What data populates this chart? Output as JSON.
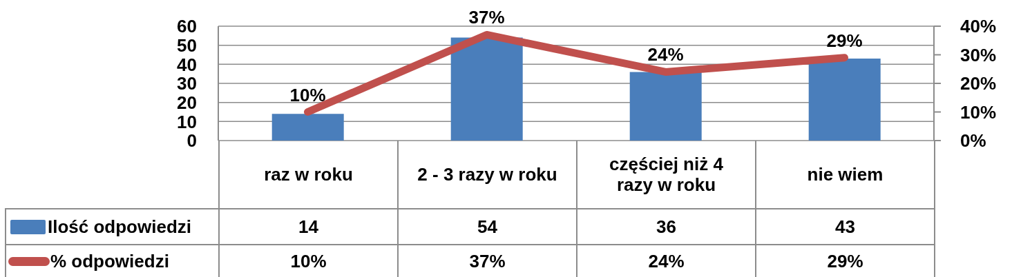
{
  "chart_data": {
    "type": "bar",
    "categories": [
      "raz w roku",
      "2 - 3 razy w roku",
      "częściej niż 4 razy w roku",
      "nie wiem"
    ],
    "series": [
      {
        "name": "Ilość odpowiedzi",
        "color": "#4a7ebb",
        "values": [
          14,
          54,
          36,
          43
        ],
        "value_labels": [
          "14",
          "54",
          "36",
          "43"
        ]
      },
      {
        "name": "% odpowiedzi",
        "type": "line",
        "axis": "y2",
        "color": "#c0504d",
        "values": [
          10,
          37,
          24,
          29
        ],
        "value_labels": [
          "10%",
          "37%",
          "24%",
          "29%"
        ]
      }
    ],
    "ylim": [
      0,
      60
    ],
    "yticks": [
      0,
      10,
      20,
      30,
      40,
      50,
      60
    ],
    "y2lim": [
      0,
      40
    ],
    "y2ticks": [
      {
        "value": 0,
        "label": "0%"
      },
      {
        "value": 10,
        "label": "10%"
      },
      {
        "value": 20,
        "label": "20%"
      },
      {
        "value": 30,
        "label": "30%"
      },
      {
        "value": 40,
        "label": "40%"
      }
    ],
    "grid": "y",
    "legend": "bottom left"
  }
}
